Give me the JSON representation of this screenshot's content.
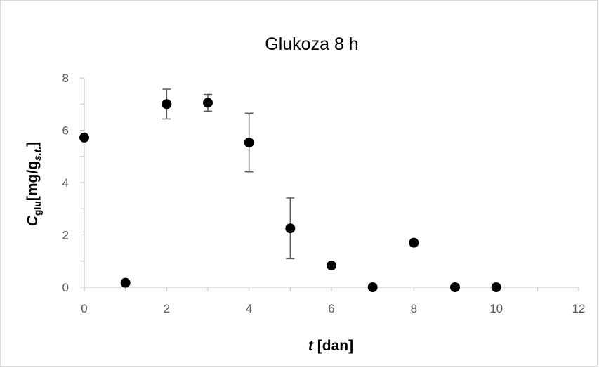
{
  "chart_data": {
    "type": "scatter",
    "title": "Glukoza 8 h",
    "xlabel": {
      "var": "t",
      "unit": " [dan]"
    },
    "ylabel": {
      "var": "C",
      "var_sub": "glu",
      "unit_pre": "[mg/g",
      "unit_sub": "s.t.",
      "unit_post": "]"
    },
    "xlim": [
      0,
      12
    ],
    "ylim": [
      0,
      8
    ],
    "x_ticks": [
      0,
      2,
      4,
      6,
      8,
      10,
      12
    ],
    "y_ticks": [
      0,
      2,
      4,
      6,
      8
    ],
    "grid": false,
    "marker_color": "#000000",
    "axis_color": "#bfbfbf",
    "errorbar_color": "#595959",
    "points": [
      {
        "x": 0,
        "y": 5.72,
        "err": null
      },
      {
        "x": 1,
        "y": 0.17,
        "err": null
      },
      {
        "x": 2,
        "y": 7.0,
        "err": 0.57
      },
      {
        "x": 3,
        "y": 7.05,
        "err": 0.32
      },
      {
        "x": 4,
        "y": 5.53,
        "err": 1.12
      },
      {
        "x": 5,
        "y": 2.25,
        "err": 1.16
      },
      {
        "x": 6,
        "y": 0.83,
        "err": null
      },
      {
        "x": 7,
        "y": 0.0,
        "err": null
      },
      {
        "x": 8,
        "y": 1.7,
        "err": null
      },
      {
        "x": 9,
        "y": 0.0,
        "err": null
      },
      {
        "x": 10,
        "y": 0.0,
        "err": null
      }
    ]
  }
}
